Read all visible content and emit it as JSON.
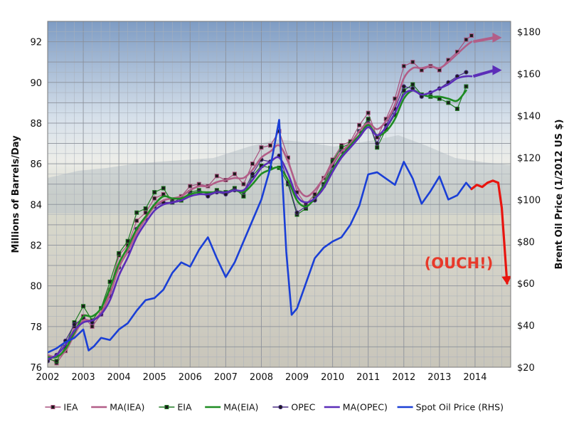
{
  "chart_data": {
    "type": "line",
    "title": "",
    "xlabel": "",
    "ylabel": "Millions of Barrels/Day",
    "y2label": "Brent Oil Price (1/2012 US $)",
    "xlim": [
      2002,
      2015
    ],
    "ylim": [
      76,
      93
    ],
    "y2lim": [
      20,
      185
    ],
    "x_ticks": [
      "2002",
      "2003",
      "2004",
      "2005",
      "2006",
      "2007",
      "2008",
      "2009",
      "2010",
      "2011",
      "2012",
      "2013",
      "2014"
    ],
    "y_ticks": [
      "76",
      "78",
      "80",
      "82",
      "84",
      "86",
      "88",
      "90",
      "92"
    ],
    "y2_ticks": [
      "$20",
      "$40",
      "$60",
      "$80",
      "$100",
      "$120",
      "$140",
      "$160",
      "$180"
    ],
    "grid": true,
    "legend_position": "bottom",
    "annotation": "(OUCH!)",
    "series": [
      {
        "name": "IEA",
        "color": "#a8527e",
        "marker": "square",
        "axis": "left",
        "x": [
          2002.0,
          2002.25,
          2002.5,
          2002.75,
          2003.0,
          2003.25,
          2003.5,
          2003.75,
          2004.0,
          2004.25,
          2004.5,
          2004.75,
          2005.0,
          2005.25,
          2005.5,
          2005.75,
          2006.0,
          2006.25,
          2006.5,
          2006.75,
          2007.0,
          2007.25,
          2007.5,
          2007.75,
          2008.0,
          2008.25,
          2008.5,
          2008.75,
          2009.0,
          2009.25,
          2009.5,
          2009.75,
          2010.0,
          2010.25,
          2010.5,
          2010.75,
          2011.0,
          2011.25,
          2011.5,
          2011.75,
          2012.0,
          2012.25,
          2012.5,
          2012.75,
          2013.0,
          2013.25,
          2013.5,
          2013.75,
          2013.9
        ],
        "y": [
          76.5,
          76.2,
          76.8,
          78.0,
          78.5,
          78.0,
          78.6,
          79.8,
          81.5,
          82.0,
          83.2,
          83.6,
          84.3,
          84.5,
          84.2,
          84.4,
          84.9,
          85.0,
          84.9,
          85.4,
          85.2,
          85.5,
          85.0,
          86.0,
          86.8,
          86.9,
          87.6,
          86.3,
          84.6,
          84.0,
          84.5,
          85.3,
          86.2,
          86.9,
          87.1,
          87.9,
          88.5,
          87.3,
          88.2,
          89.2,
          90.8,
          91.0,
          90.6,
          90.8,
          90.6,
          91.1,
          91.5,
          92.1,
          92.3
        ]
      },
      {
        "name": "MA(IEA)",
        "color": "#b25e88",
        "marker": "none",
        "axis": "left",
        "x": [
          2002.0,
          2002.25,
          2002.5,
          2002.75,
          2003.0,
          2003.25,
          2003.5,
          2003.75,
          2004.0,
          2004.25,
          2004.5,
          2004.75,
          2005.0,
          2005.25,
          2005.5,
          2005.75,
          2006.0,
          2006.25,
          2006.5,
          2006.75,
          2007.0,
          2007.25,
          2007.5,
          2007.75,
          2008.0,
          2008.25,
          2008.5,
          2008.75,
          2009.0,
          2009.25,
          2009.5,
          2009.75,
          2010.0,
          2010.25,
          2010.5,
          2010.75,
          2011.0,
          2011.25,
          2011.5,
          2011.75,
          2012.0,
          2012.25,
          2012.5,
          2012.75,
          2013.0,
          2013.25,
          2013.5,
          2013.75,
          2013.9
        ],
        "y": [
          76.6,
          76.5,
          76.8,
          77.6,
          78.3,
          78.3,
          78.7,
          79.6,
          80.9,
          81.7,
          82.6,
          83.3,
          83.9,
          84.2,
          84.3,
          84.4,
          84.7,
          84.9,
          84.9,
          85.1,
          85.2,
          85.3,
          85.3,
          85.7,
          86.3,
          86.6,
          86.9,
          86.1,
          84.9,
          84.4,
          84.7,
          85.3,
          86.0,
          86.6,
          87.0,
          87.6,
          88.0,
          87.7,
          88.1,
          88.9,
          90.2,
          90.7,
          90.7,
          90.8,
          90.7,
          91.0,
          91.4,
          91.8,
          92.0
        ]
      },
      {
        "name": "EIA",
        "color": "#1f7a23",
        "marker": "square",
        "axis": "left",
        "x": [
          2002.0,
          2002.25,
          2002.5,
          2002.75,
          2003.0,
          2003.25,
          2003.5,
          2003.75,
          2004.0,
          2004.25,
          2004.5,
          2004.75,
          2005.0,
          2005.25,
          2005.5,
          2005.75,
          2006.0,
          2006.25,
          2006.5,
          2006.75,
          2007.0,
          2007.25,
          2007.5,
          2007.75,
          2008.0,
          2008.25,
          2008.5,
          2008.75,
          2009.0,
          2009.25,
          2009.5,
          2009.75,
          2010.0,
          2010.25,
          2010.5,
          2010.75,
          2011.0,
          2011.25,
          2011.5,
          2011.75,
          2012.0,
          2012.25,
          2012.5,
          2012.75,
          2013.0,
          2013.25,
          2013.5,
          2013.75
        ],
        "y": [
          76.4,
          76.3,
          77.0,
          78.2,
          79.0,
          78.3,
          78.9,
          80.2,
          81.6,
          82.2,
          83.6,
          83.8,
          84.6,
          84.8,
          84.1,
          84.2,
          84.6,
          84.7,
          84.5,
          84.7,
          84.6,
          84.8,
          84.4,
          85.4,
          85.9,
          85.8,
          85.8,
          85.0,
          83.5,
          83.8,
          84.3,
          85.0,
          86.1,
          86.8,
          87.0,
          87.6,
          88.2,
          86.8,
          87.7,
          88.4,
          89.6,
          89.9,
          89.4,
          89.3,
          89.2,
          89.0,
          88.7,
          89.8
        ]
      },
      {
        "name": "MA(EIA)",
        "color": "#1e8c22",
        "marker": "none",
        "axis": "left",
        "x": [
          2002.0,
          2002.25,
          2002.5,
          2002.75,
          2003.0,
          2003.25,
          2003.5,
          2003.75,
          2004.0,
          2004.25,
          2004.5,
          2004.75,
          2005.0,
          2005.25,
          2005.5,
          2005.75,
          2006.0,
          2006.25,
          2006.5,
          2006.75,
          2007.0,
          2007.25,
          2007.5,
          2007.75,
          2008.0,
          2008.25,
          2008.5,
          2008.75,
          2009.0,
          2009.25,
          2009.5,
          2009.75,
          2010.0,
          2010.25,
          2010.5,
          2010.75,
          2011.0,
          2011.25,
          2011.5,
          2011.75,
          2012.0,
          2012.25,
          2012.5,
          2012.75,
          2013.0,
          2013.25,
          2013.5,
          2013.75
        ],
        "y": [
          76.5,
          76.5,
          76.9,
          77.7,
          78.5,
          78.5,
          78.9,
          79.9,
          81.1,
          81.9,
          82.8,
          83.4,
          84.0,
          84.4,
          84.3,
          84.3,
          84.5,
          84.6,
          84.6,
          84.6,
          84.6,
          84.7,
          84.6,
          85.0,
          85.5,
          85.7,
          85.8,
          85.2,
          84.2,
          83.9,
          84.3,
          84.9,
          85.7,
          86.4,
          86.9,
          87.4,
          87.9,
          87.4,
          87.6,
          88.2,
          89.2,
          89.6,
          89.4,
          89.3,
          89.3,
          89.2,
          89.1,
          89.6
        ]
      },
      {
        "name": "OPEC",
        "color": "#4b2f86",
        "marker": "circle",
        "axis": "left",
        "x": [
          2002.0,
          2002.25,
          2002.5,
          2002.75,
          2003.0,
          2003.25,
          2003.5,
          2003.75,
          2004.0,
          2004.25,
          2004.5,
          2004.75,
          2005.0,
          2005.25,
          2005.5,
          2005.75,
          2006.0,
          2006.25,
          2006.5,
          2006.75,
          2007.0,
          2007.25,
          2007.5,
          2007.75,
          2008.0,
          2008.25,
          2008.5,
          2008.75,
          2009.0,
          2009.25,
          2009.5,
          2009.75,
          2010.0,
          2010.25,
          2010.5,
          2010.75,
          2011.0,
          2011.25,
          2011.5,
          2011.75,
          2012.0,
          2012.25,
          2012.5,
          2012.75,
          2013.0,
          2013.25,
          2013.5,
          2013.75
        ],
        "y": [
          76.3,
          76.6,
          77.3,
          78.1,
          78.4,
          78.2,
          78.6,
          79.5,
          80.9,
          81.7,
          82.8,
          83.3,
          83.9,
          84.1,
          84.1,
          84.3,
          84.5,
          84.6,
          84.4,
          84.6,
          84.5,
          84.7,
          84.6,
          85.5,
          86.2,
          86.1,
          86.4,
          85.1,
          83.6,
          83.9,
          84.2,
          84.9,
          85.9,
          86.6,
          86.9,
          87.6,
          88.0,
          87.0,
          87.9,
          88.7,
          89.8,
          89.7,
          89.3,
          89.5,
          89.7,
          90.0,
          90.3,
          90.5
        ]
      },
      {
        "name": "MA(OPEC)",
        "color": "#5b2db8",
        "marker": "none",
        "axis": "left",
        "x": [
          2002.0,
          2002.25,
          2002.5,
          2002.75,
          2003.0,
          2003.25,
          2003.5,
          2003.75,
          2004.0,
          2004.25,
          2004.5,
          2004.75,
          2005.0,
          2005.25,
          2005.5,
          2005.75,
          2006.0,
          2006.25,
          2006.5,
          2006.75,
          2007.0,
          2007.25,
          2007.5,
          2007.75,
          2008.0,
          2008.25,
          2008.5,
          2008.75,
          2009.0,
          2009.25,
          2009.5,
          2009.75,
          2010.0,
          2010.25,
          2010.5,
          2010.75,
          2011.0,
          2011.25,
          2011.5,
          2011.75,
          2012.0,
          2012.25,
          2012.5,
          2012.75,
          2013.0,
          2013.25,
          2013.5,
          2013.75,
          2013.9
        ],
        "y": [
          76.4,
          76.6,
          77.1,
          77.8,
          78.2,
          78.3,
          78.6,
          79.3,
          80.5,
          81.4,
          82.4,
          83.1,
          83.7,
          84.0,
          84.1,
          84.2,
          84.4,
          84.5,
          84.5,
          84.6,
          84.6,
          84.7,
          84.7,
          85.2,
          85.8,
          86.1,
          86.3,
          85.5,
          84.4,
          84.1,
          84.3,
          84.8,
          85.6,
          86.3,
          86.8,
          87.3,
          87.8,
          87.4,
          87.8,
          88.5,
          89.4,
          89.6,
          89.4,
          89.5,
          89.7,
          89.9,
          90.2,
          90.3,
          90.3
        ]
      },
      {
        "name": "Spot Oil Price (RHS)",
        "color": "#1a3fd6",
        "marker": "none",
        "axis": "right",
        "x": [
          2002.0,
          2002.25,
          2002.5,
          2002.75,
          2003.0,
          2003.15,
          2003.3,
          2003.5,
          2003.75,
          2004.0,
          2004.25,
          2004.5,
          2004.75,
          2005.0,
          2005.25,
          2005.5,
          2005.75,
          2006.0,
          2006.25,
          2006.5,
          2006.75,
          2007.0,
          2007.25,
          2007.5,
          2007.75,
          2008.0,
          2008.25,
          2008.5,
          2008.7,
          2008.85,
          2009.0,
          2009.25,
          2009.5,
          2009.75,
          2010.0,
          2010.25,
          2010.5,
          2010.75,
          2011.0,
          2011.25,
          2011.5,
          2011.75,
          2012.0,
          2012.25,
          2012.5,
          2012.75,
          2013.0,
          2013.25,
          2013.5,
          2013.75,
          2013.9
        ],
        "y": [
          27,
          29,
          32,
          34,
          38,
          28,
          30,
          34,
          33,
          38,
          41,
          47,
          52,
          53,
          57,
          65,
          70,
          68,
          76,
          82,
          72,
          63,
          70,
          80,
          90,
          100,
          115,
          138,
          75,
          45,
          48,
          60,
          72,
          77,
          80,
          82,
          88,
          97,
          112,
          113,
          110,
          107,
          118,
          110,
          98,
          104,
          111,
          100,
          102,
          108,
          105
        ]
      },
      {
        "name": "",
        "color": "#e8150f",
        "marker": "none",
        "axis": "right",
        "x": [
          2013.9,
          2014.05,
          2014.2,
          2014.35,
          2014.5,
          2014.65,
          2014.75,
          2014.9
        ],
        "y": [
          105,
          107,
          106,
          108,
          109,
          108,
          96,
          60
        ]
      }
    ]
  },
  "legend": [
    {
      "label": "IEA",
      "color": "#a8527e",
      "marker": "square"
    },
    {
      "label": "MA(IEA)",
      "color": "#b25e88",
      "marker": "none"
    },
    {
      "label": "EIA",
      "color": "#1f7a23",
      "marker": "square"
    },
    {
      "label": "MA(EIA)",
      "color": "#1e8c22",
      "marker": "none"
    },
    {
      "label": "OPEC",
      "color": "#4b2f86",
      "marker": "circle"
    },
    {
      "label": "MA(OPEC)",
      "color": "#5b2db8",
      "marker": "none"
    },
    {
      "label": "Spot Oil Price (RHS)",
      "color": "#1a3fd6",
      "marker": "none"
    }
  ],
  "arrows": [
    {
      "color": "#b25e88",
      "from": [
        2013.95,
        92.0
      ],
      "to": [
        2014.75,
        92.2
      ]
    },
    {
      "color": "#5b2db8",
      "from": [
        2013.95,
        90.3
      ],
      "to": [
        2014.75,
        90.6
      ]
    }
  ]
}
